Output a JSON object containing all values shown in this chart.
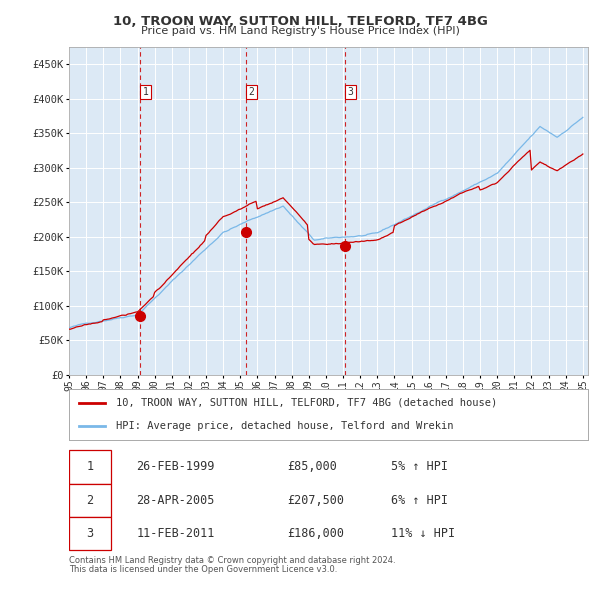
{
  "title": "10, TROON WAY, SUTTON HILL, TELFORD, TF7 4BG",
  "subtitle": "Price paid vs. HM Land Registry's House Price Index (HPI)",
  "plot_bg_color": "#dce9f5",
  "ylim": [
    0,
    475000
  ],
  "yticks": [
    0,
    50000,
    100000,
    150000,
    200000,
    250000,
    300000,
    350000,
    400000,
    450000
  ],
  "ytick_labels": [
    "£0",
    "£50K",
    "£100K",
    "£150K",
    "£200K",
    "£250K",
    "£300K",
    "£350K",
    "£400K",
    "£450K"
  ],
  "transactions": [
    {
      "label": "1",
      "year": 1999.15,
      "price": 85000,
      "date": "26-FEB-1999",
      "pct": "5%",
      "dir": "↑"
    },
    {
      "label": "2",
      "year": 2005.32,
      "price": 207500,
      "date": "28-APR-2005",
      "pct": "6%",
      "dir": "↑"
    },
    {
      "label": "3",
      "year": 2011.12,
      "price": 186000,
      "date": "11-FEB-2011",
      "pct": "11%",
      "dir": "↓"
    }
  ],
  "legend_line1": "10, TROON WAY, SUTTON HILL, TELFORD, TF7 4BG (detached house)",
  "legend_line2": "HPI: Average price, detached house, Telford and Wrekin",
  "footer_line1": "Contains HM Land Registry data © Crown copyright and database right 2024.",
  "footer_line2": "This data is licensed under the Open Government Licence v3.0.",
  "hpi_color": "#7ab8e8",
  "price_color": "#cc0000",
  "dashed_line_color": "#cc0000",
  "marker_color": "#cc0000",
  "grid_color": "#ffffff",
  "spine_color": "#aaaaaa"
}
